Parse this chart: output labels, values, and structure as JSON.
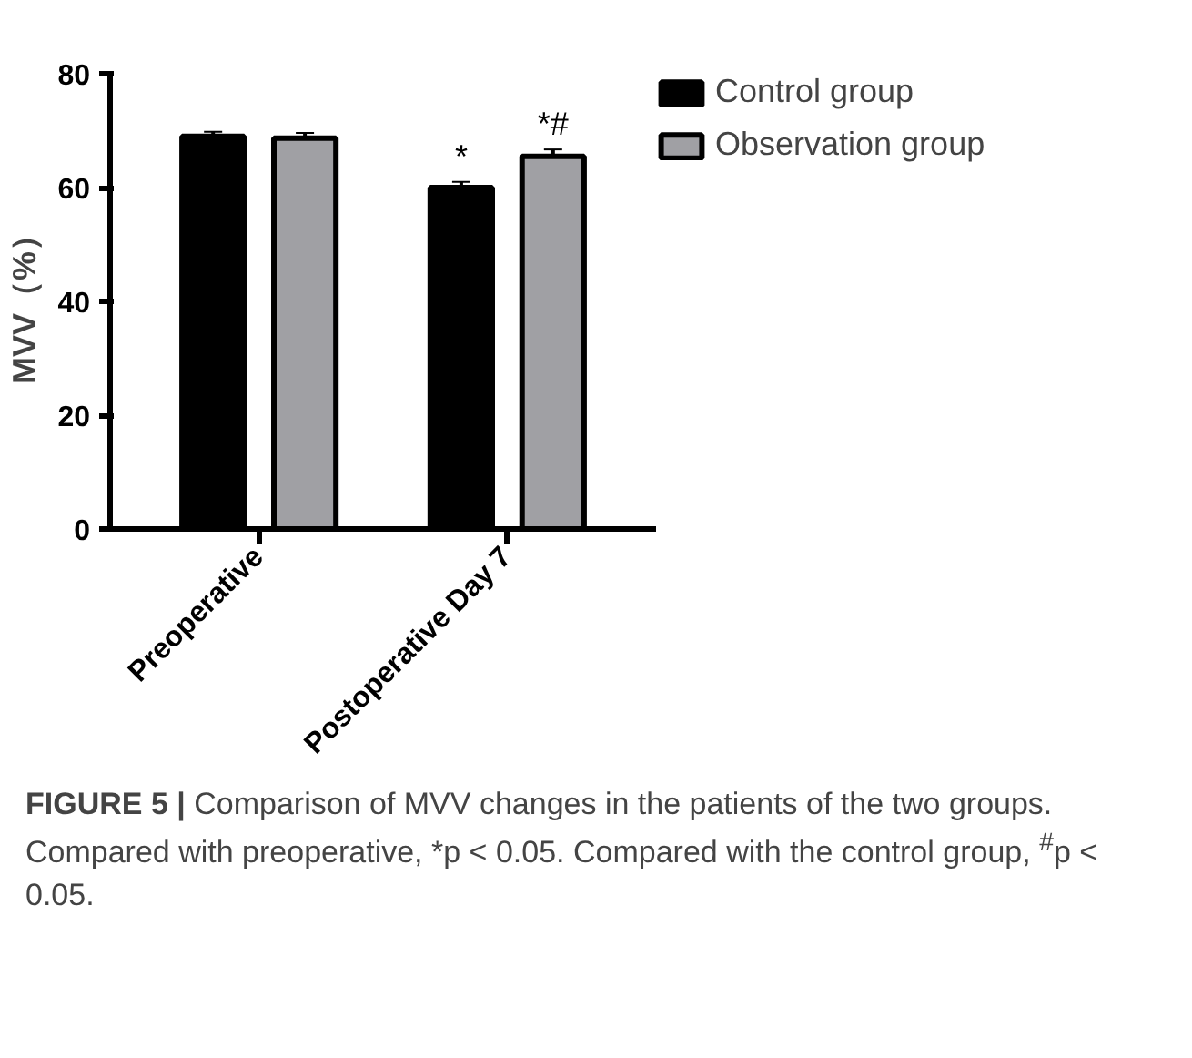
{
  "chart_data": {
    "type": "bar",
    "categories": [
      "Preoperative",
      "Postoperative Day 7"
    ],
    "ylabel": "MVV（%）",
    "ylim": [
      0,
      80
    ],
    "yticks": [
      0,
      20,
      40,
      60,
      80
    ],
    "grid": false,
    "legend": "top right",
    "series": [
      {
        "name": "Control group",
        "color": "#000000",
        "values": [
          69,
          60
        ],
        "errors": [
          0.8,
          1.0
        ],
        "value_labels": [
          null,
          "*"
        ]
      },
      {
        "name": "Observation group",
        "color": "#a0a0a4",
        "values": [
          68.7,
          65.5
        ],
        "errors": [
          0.9,
          1.2
        ],
        "value_labels": [
          null,
          "*#"
        ]
      }
    ],
    "annotations": [
      "FIGURE 5 | Comparison of MVV changes in the patients of the two groups. Compared with preoperative, *p < 0.05. Compared with the control group, $^{#}$p < 0.05."
    ]
  }
}
